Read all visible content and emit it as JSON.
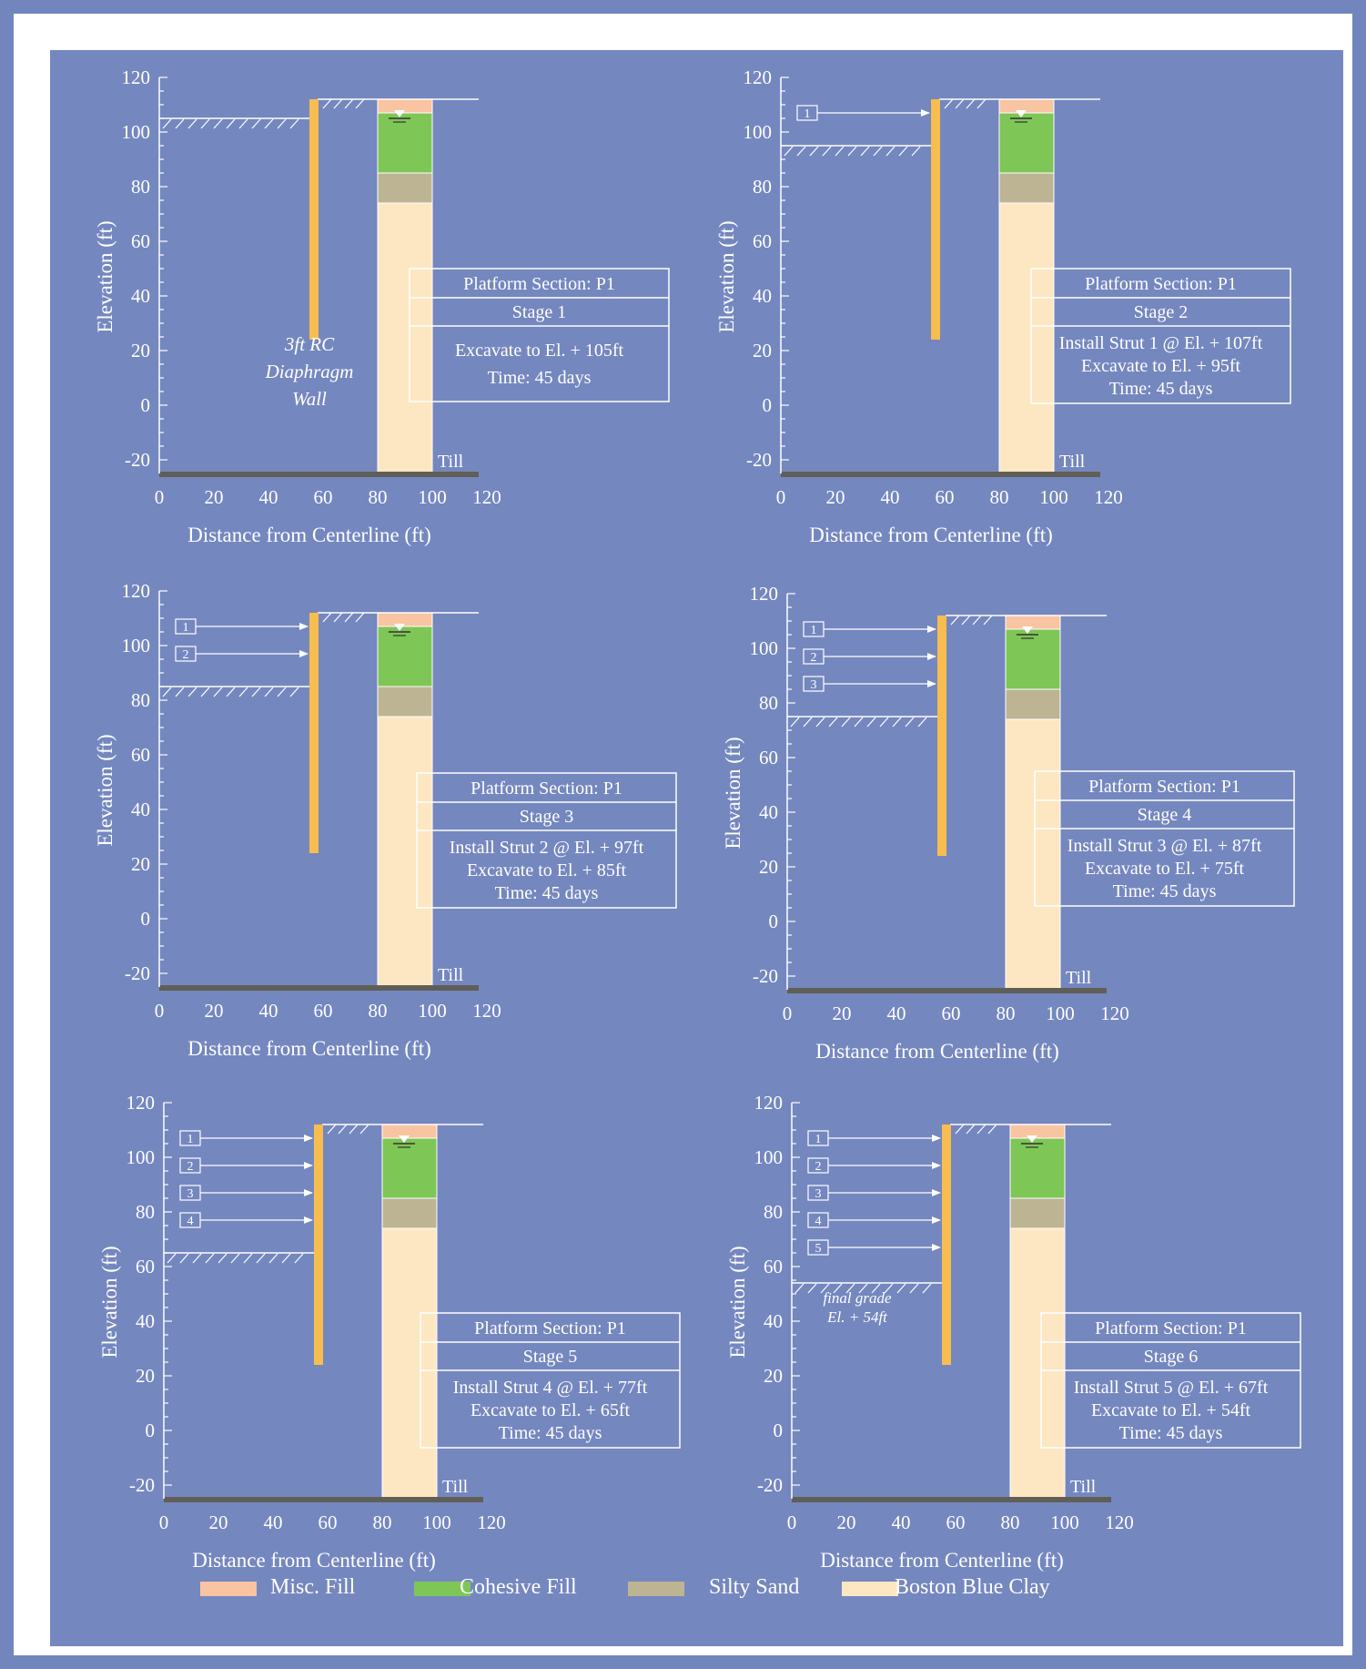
{
  "colors": {
    "background": "#7587bf",
    "misc_fill": "#f9c4a1",
    "cohesive_fill": "#7ec656",
    "silty_sand": "#bdb494",
    "boston_blue_clay": "#fde7c2",
    "wall": "#f7bd4f",
    "till": "#605f57",
    "text": "#ffffff"
  },
  "chart_data": [
    {
      "type": "profile",
      "xlabel": "Distance from Centerline (ft)",
      "ylabel": "Elevation (ft)",
      "xticks": [
        "0",
        "20",
        "40",
        "60",
        "80",
        "100",
        "120"
      ],
      "yticks": [
        "120",
        "100",
        "80",
        "60",
        "40",
        "20",
        "0",
        "-20"
      ],
      "xlim": [
        0,
        120
      ],
      "ylim": [
        -25,
        120
      ],
      "wall": {
        "x": 56,
        "top": 112,
        "bottom": 24,
        "label": [
          "3ft RC",
          "Diaphragm",
          "Wall"
        ]
      },
      "ground_elevation": 112,
      "excavation_elevation": 105,
      "struts": [],
      "soil_profile": [
        {
          "layer": "Misc. Fill",
          "top": 112,
          "bottom": 107
        },
        {
          "layer": "Cohesive Fill",
          "top": 107,
          "bottom": 85
        },
        {
          "layer": "Silty Sand",
          "top": 85,
          "bottom": 74
        },
        {
          "layer": "Boston Blue Clay",
          "top": 74,
          "bottom": -25
        }
      ],
      "water_table": 105,
      "till_label": "Till",
      "info_box": {
        "header": "Platform Section: P1",
        "stage": "Stage 1",
        "lines": [
          "Excavate to El. + 105ft",
          "Time: 45 days"
        ]
      }
    },
    {
      "type": "profile",
      "xlabel": "Distance from Centerline (ft)",
      "ylabel": "Elevation (ft)",
      "xticks": [
        "0",
        "20",
        "40",
        "60",
        "80",
        "100",
        "120"
      ],
      "yticks": [
        "120",
        "100",
        "80",
        "60",
        "40",
        "20",
        "0",
        "-20"
      ],
      "xlim": [
        0,
        120
      ],
      "ylim": [
        -25,
        120
      ],
      "wall": {
        "x": 56,
        "top": 112,
        "bottom": 24
      },
      "ground_elevation": 112,
      "excavation_elevation": 95,
      "struts": [
        {
          "label": "1",
          "elevation": 107
        }
      ],
      "water_table": 105,
      "till_label": "Till",
      "info_box": {
        "header": "Platform Section: P1",
        "stage": "Stage 2",
        "lines": [
          "Install Strut 1 @ El. + 107ft",
          "Excavate to El. + 95ft",
          "Time: 45 days"
        ]
      }
    },
    {
      "type": "profile",
      "xlabel": "Distance from Centerline (ft)",
      "ylabel": "Elevation (ft)",
      "xticks": [
        "0",
        "20",
        "40",
        "60",
        "80",
        "100",
        "120"
      ],
      "yticks": [
        "120",
        "100",
        "80",
        "60",
        "40",
        "20",
        "0",
        "-20"
      ],
      "xlim": [
        0,
        120
      ],
      "ylim": [
        -25,
        120
      ],
      "wall": {
        "x": 56,
        "top": 112,
        "bottom": 24
      },
      "ground_elevation": 112,
      "excavation_elevation": 85,
      "struts": [
        {
          "label": "1",
          "elevation": 107
        },
        {
          "label": "2",
          "elevation": 97
        }
      ],
      "water_table": 105,
      "till_label": "Till",
      "info_box": {
        "header": "Platform Section: P1",
        "stage": "Stage 3",
        "lines": [
          "Install Strut 2 @ El. + 97ft",
          "Excavate to El. + 85ft",
          "Time: 45 days"
        ]
      }
    },
    {
      "type": "profile",
      "xlabel": "Distance from Centerline (ft)",
      "ylabel": "Elevation (ft)",
      "xticks": [
        "0",
        "20",
        "40",
        "60",
        "80",
        "100",
        "120"
      ],
      "yticks": [
        "120",
        "100",
        "80",
        "60",
        "40",
        "20",
        "0",
        "-20"
      ],
      "xlim": [
        0,
        120
      ],
      "ylim": [
        -25,
        120
      ],
      "wall": {
        "x": 56,
        "top": 112,
        "bottom": 24
      },
      "ground_elevation": 112,
      "excavation_elevation": 75,
      "struts": [
        {
          "label": "1",
          "elevation": 107
        },
        {
          "label": "2",
          "elevation": 97
        },
        {
          "label": "3",
          "elevation": 87
        }
      ],
      "water_table": 105,
      "till_label": "Till",
      "info_box": {
        "header": "Platform Section: P1",
        "stage": "Stage 4",
        "lines": [
          "Install Strut 3 @ El. + 87ft",
          "Excavate to El. + 75ft",
          "Time: 45 days"
        ]
      }
    },
    {
      "type": "profile",
      "xlabel": "Distance from Centerline (ft)",
      "ylabel": "Elevation (ft)",
      "xticks": [
        "0",
        "20",
        "40",
        "60",
        "80",
        "100",
        "120"
      ],
      "yticks": [
        "120",
        "100",
        "80",
        "60",
        "40",
        "20",
        "0",
        "-20"
      ],
      "xlim": [
        0,
        120
      ],
      "ylim": [
        -25,
        120
      ],
      "wall": {
        "x": 56,
        "top": 112,
        "bottom": 24
      },
      "ground_elevation": 112,
      "excavation_elevation": 65,
      "struts": [
        {
          "label": "1",
          "elevation": 107
        },
        {
          "label": "2",
          "elevation": 97
        },
        {
          "label": "3",
          "elevation": 87
        },
        {
          "label": "4",
          "elevation": 77
        }
      ],
      "water_table": 105,
      "till_label": "Till",
      "info_box": {
        "header": "Platform Section: P1",
        "stage": "Stage 5",
        "lines": [
          "Install Strut 4 @ El. + 77ft",
          "Excavate to El. + 65ft",
          "Time: 45 days"
        ]
      }
    },
    {
      "type": "profile",
      "xlabel": "Distance from Centerline (ft)",
      "ylabel": "Elevation (ft)",
      "xticks": [
        "0",
        "20",
        "40",
        "60",
        "80",
        "100",
        "120"
      ],
      "yticks": [
        "120",
        "100",
        "80",
        "60",
        "40",
        "20",
        "0",
        "-20"
      ],
      "xlim": [
        0,
        120
      ],
      "ylim": [
        -25,
        120
      ],
      "wall": {
        "x": 56,
        "top": 112,
        "bottom": 24
      },
      "ground_elevation": 112,
      "excavation_elevation": 54,
      "excavation_note": [
        "final grade",
        "El. + 54ft"
      ],
      "struts": [
        {
          "label": "1",
          "elevation": 107
        },
        {
          "label": "2",
          "elevation": 97
        },
        {
          "label": "3",
          "elevation": 87
        },
        {
          "label": "4",
          "elevation": 77
        },
        {
          "label": "5",
          "elevation": 67
        }
      ],
      "water_table": 105,
      "till_label": "Till",
      "info_box": {
        "header": "Platform Section: P1",
        "stage": "Stage 6",
        "lines": [
          "Install Strut 5 @ El. + 67ft",
          "Excavate to El. + 54ft",
          "Time: 45 days"
        ]
      }
    }
  ],
  "legend": [
    {
      "label": "Misc. Fill",
      "color": "#f9c4a1"
    },
    {
      "label": "Cohesive Fill",
      "color": "#7ec656"
    },
    {
      "label": "Silty Sand",
      "color": "#bdb494"
    },
    {
      "label": "Boston Blue Clay",
      "color": "#fde7c2"
    }
  ]
}
